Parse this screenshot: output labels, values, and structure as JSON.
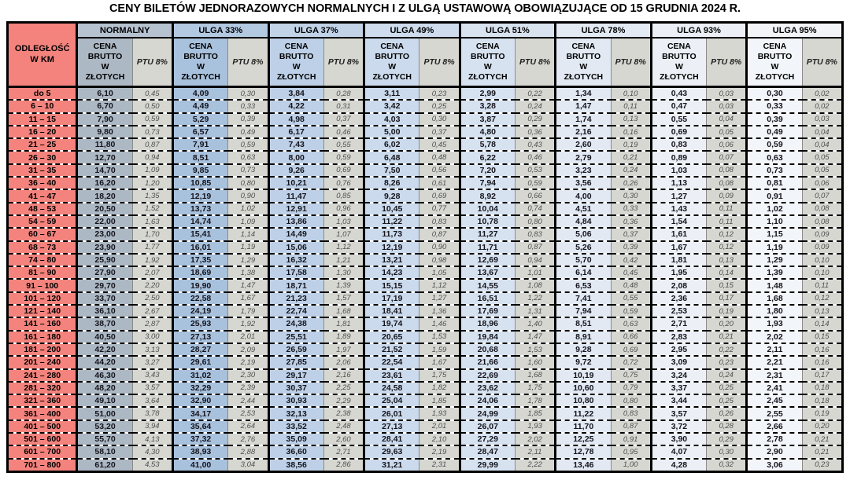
{
  "title": "CENY BILETÓW JEDNORAZOWYCH NORMALNYCH I Z ULGĄ USTAWOWĄ OBOWIĄZUJĄCE OD 15 GRUDNIA 2024 R.",
  "colors": {
    "distance": "#F4837D",
    "ptu_cell": "#D7D7D2",
    "border": "#000000"
  },
  "table": {
    "distance_header": "ODLEGŁOŚĆ\nW KM",
    "cena_header": "CENA\nBRUTTO\nW\nZŁOTYCH",
    "ptu_header": "PTU 8%",
    "groups": [
      {
        "label": "NORMALNY",
        "header_color": "#B6C2D0",
        "cena_color": "#ACB8C4"
      },
      {
        "label": "ULGA 33%",
        "header_color": "#B3C9E2",
        "cena_color": "#A8C1DD"
      },
      {
        "label": "ULGA 37%",
        "header_color": "#C2D3E8",
        "cena_color": "#BDD0E7"
      },
      {
        "label": "ULGA 49%",
        "header_color": "#CEDCEE",
        "cena_color": "#CBDAEC"
      },
      {
        "label": "ULGA 51%",
        "header_color": "#D9E3F0",
        "cena_color": "#D7E2F0"
      },
      {
        "label": "ULGA 78%",
        "header_color": "#E3EAF4",
        "cena_color": "#E2E9F3"
      },
      {
        "label": "ULGA 93%",
        "header_color": "#ECF0F6",
        "cena_color": "#ECF0F6"
      },
      {
        "label": "ULGA 95%",
        "header_color": "#F2F4F8",
        "cena_color": "#F2F5F9"
      }
    ],
    "rows": [
      {
        "km": "do 5",
        "cells": [
          "6,10",
          "0,45",
          "4,09",
          "0,30",
          "3,84",
          "0,28",
          "3,11",
          "0,23",
          "2,99",
          "0,22",
          "1,34",
          "0,10",
          "0,43",
          "0,03",
          "0,30",
          "0,02"
        ]
      },
      {
        "km": "6 – 10",
        "cells": [
          "6,70",
          "0,50",
          "4,49",
          "0,33",
          "4,22",
          "0,31",
          "3,42",
          "0,25",
          "3,28",
          "0,24",
          "1,47",
          "0,11",
          "0,47",
          "0,03",
          "0,33",
          "0,02"
        ]
      },
      {
        "km": "11 – 15",
        "cells": [
          "7,90",
          "0,59",
          "5,29",
          "0,39",
          "4,98",
          "0,37",
          "4,03",
          "0,30",
          "3,87",
          "0,29",
          "1,74",
          "0,13",
          "0,55",
          "0,04",
          "0,39",
          "0,03"
        ]
      },
      {
        "km": "16 – 20",
        "cells": [
          "9,80",
          "0,73",
          "6,57",
          "0,49",
          "6,17",
          "0,46",
          "5,00",
          "0,37",
          "4,80",
          "0,36",
          "2,16",
          "0,16",
          "0,69",
          "0,05",
          "0,49",
          "0,04"
        ]
      },
      {
        "km": "21 – 25",
        "cells": [
          "11,80",
          "0,87",
          "7,91",
          "0,59",
          "7,43",
          "0,55",
          "6,02",
          "0,45",
          "5,78",
          "0,43",
          "2,60",
          "0,19",
          "0,83",
          "0,06",
          "0,59",
          "0,04"
        ]
      },
      {
        "km": "26 – 30",
        "cells": [
          "12,70",
          "0,94",
          "8,51",
          "0,63",
          "8,00",
          "0,59",
          "6,48",
          "0,48",
          "6,22",
          "0,46",
          "2,79",
          "0,21",
          "0,89",
          "0,07",
          "0,63",
          "0,05"
        ]
      },
      {
        "km": "31 – 35",
        "cells": [
          "14,70",
          "1,09",
          "9,85",
          "0,73",
          "9,26",
          "0,69",
          "7,50",
          "0,56",
          "7,20",
          "0,53",
          "3,23",
          "0,24",
          "1,03",
          "0,08",
          "0,73",
          "0,05"
        ]
      },
      {
        "km": "36 – 40",
        "cells": [
          "16,20",
          "1,20",
          "10,85",
          "0,80",
          "10,21",
          "0,76",
          "8,26",
          "0,61",
          "7,94",
          "0,59",
          "3,56",
          "0,26",
          "1,13",
          "0,08",
          "0,81",
          "0,06"
        ]
      },
      {
        "km": "41 – 47",
        "cells": [
          "18,20",
          "1,35",
          "12,19",
          "0,90",
          "11,47",
          "0,85",
          "9,28",
          "0,69",
          "8,92",
          "0,66",
          "4,00",
          "0,30",
          "1,27",
          "0,09",
          "0,91",
          "0,07"
        ]
      },
      {
        "km": "48 – 53",
        "cells": [
          "20,50",
          "1,52",
          "13,73",
          "1,02",
          "12,91",
          "0,96",
          "10,45",
          "0,77",
          "10,04",
          "0,74",
          "4,51",
          "0,33",
          "1,43",
          "0,11",
          "1,02",
          "0,08"
        ]
      },
      {
        "km": "54 – 59",
        "cells": [
          "22,00",
          "1,63",
          "14,74",
          "1,09",
          "13,86",
          "1,03",
          "11,22",
          "0,83",
          "10,78",
          "0,80",
          "4,84",
          "0,36",
          "1,54",
          "0,11",
          "1,10",
          "0,08"
        ]
      },
      {
        "km": "60 – 67",
        "cells": [
          "23,00",
          "1,70",
          "15,41",
          "1,14",
          "14,49",
          "1,07",
          "11,73",
          "0,87",
          "11,27",
          "0,83",
          "5,06",
          "0,37",
          "1,61",
          "0,12",
          "1,15",
          "0,09"
        ]
      },
      {
        "km": "68 – 73",
        "cells": [
          "23,90",
          "1,77",
          "16,01",
          "1,19",
          "15,06",
          "1,12",
          "12,19",
          "0,90",
          "11,71",
          "0,87",
          "5,26",
          "0,39",
          "1,67",
          "0,12",
          "1,19",
          "0,09"
        ]
      },
      {
        "km": "74 – 80",
        "cells": [
          "25,90",
          "1,92",
          "17,35",
          "1,29",
          "16,32",
          "1,21",
          "13,21",
          "0,98",
          "12,69",
          "0,94",
          "5,70",
          "0,42",
          "1,81",
          "0,13",
          "1,29",
          "0,10"
        ]
      },
      {
        "km": "81 – 90",
        "cells": [
          "27,90",
          "2,07",
          "18,69",
          "1,38",
          "17,58",
          "1,30",
          "14,23",
          "1,05",
          "13,67",
          "1,01",
          "6,14",
          "0,45",
          "1,95",
          "0,14",
          "1,39",
          "0,10"
        ]
      },
      {
        "km": "91 – 100",
        "cells": [
          "29,70",
          "2,20",
          "19,90",
          "1,47",
          "18,71",
          "1,39",
          "15,15",
          "1,12",
          "14,55",
          "1,08",
          "6,53",
          "0,48",
          "2,08",
          "0,15",
          "1,48",
          "0,11"
        ]
      },
      {
        "km": "101 – 120",
        "cells": [
          "33,70",
          "2,50",
          "22,58",
          "1,67",
          "21,23",
          "1,57",
          "17,19",
          "1,27",
          "16,51",
          "1,22",
          "7,41",
          "0,55",
          "2,36",
          "0,17",
          "1,68",
          "0,12"
        ]
      },
      {
        "km": "121 – 140",
        "cells": [
          "36,10",
          "2,67",
          "24,19",
          "1,79",
          "22,74",
          "1,68",
          "18,41",
          "1,36",
          "17,69",
          "1,31",
          "7,94",
          "0,59",
          "2,53",
          "0,19",
          "1,80",
          "0,13"
        ]
      },
      {
        "km": "141 – 160",
        "cells": [
          "38,70",
          "2,87",
          "25,93",
          "1,92",
          "24,38",
          "1,81",
          "19,74",
          "1,46",
          "18,96",
          "1,40",
          "8,51",
          "0,63",
          "2,71",
          "0,20",
          "1,93",
          "0,14"
        ]
      },
      {
        "km": "161 – 180",
        "cells": [
          "40,50",
          "3,00",
          "27,13",
          "2,01",
          "25,51",
          "1,89",
          "20,65",
          "1,53",
          "19,84",
          "1,47",
          "8,91",
          "0,66",
          "2,83",
          "0,21",
          "2,02",
          "0,15"
        ]
      },
      {
        "km": "181 – 200",
        "cells": [
          "42,20",
          "3,13",
          "28,27",
          "2,09",
          "26,59",
          "1,97",
          "21,52",
          "1,59",
          "20,68",
          "1,53",
          "9,28",
          "0,69",
          "2,95",
          "0,22",
          "2,11",
          "0,16"
        ]
      },
      {
        "km": "201 – 240",
        "cells": [
          "44,20",
          "3,27",
          "29,61",
          "2,19",
          "27,85",
          "2,06",
          "22,54",
          "1,67",
          "21,66",
          "1,60",
          "9,72",
          "0,72",
          "3,09",
          "0,23",
          "2,21",
          "0,16"
        ]
      },
      {
        "km": "241 – 280",
        "cells": [
          "46,30",
          "3,43",
          "31,02",
          "2,30",
          "29,17",
          "2,16",
          "23,61",
          "1,75",
          "22,69",
          "1,68",
          "10,19",
          "0,75",
          "3,24",
          "0,24",
          "2,31",
          "0,17"
        ]
      },
      {
        "km": "281 – 320",
        "cells": [
          "48,20",
          "3,57",
          "32,29",
          "2,39",
          "30,37",
          "2,25",
          "24,58",
          "1,82",
          "23,62",
          "1,75",
          "10,60",
          "0,79",
          "3,37",
          "0,25",
          "2,41",
          "0,18"
        ]
      },
      {
        "km": "321 – 360",
        "cells": [
          "49,10",
          "3,64",
          "32,90",
          "2,44",
          "30,93",
          "2,29",
          "25,04",
          "1,85",
          "24,06",
          "1,78",
          "10,80",
          "0,80",
          "3,44",
          "0,25",
          "2,45",
          "0,18"
        ]
      },
      {
        "km": "361 – 400",
        "cells": [
          "51,00",
          "3,78",
          "34,17",
          "2,53",
          "32,13",
          "2,38",
          "26,01",
          "1,93",
          "24,99",
          "1,85",
          "11,22",
          "0,83",
          "3,57",
          "0,26",
          "2,55",
          "0,19"
        ]
      },
      {
        "km": "401 – 500",
        "cells": [
          "53,20",
          "3,94",
          "35,64",
          "2,64",
          "33,52",
          "2,48",
          "27,13",
          "2,01",
          "26,07",
          "1,93",
          "11,70",
          "0,87",
          "3,72",
          "0,28",
          "2,66",
          "0,20"
        ]
      },
      {
        "km": "501 – 600",
        "cells": [
          "55,70",
          "4,13",
          "37,32",
          "2,76",
          "35,09",
          "2,60",
          "28,41",
          "2,10",
          "27,29",
          "2,02",
          "12,25",
          "0,91",
          "3,90",
          "0,29",
          "2,78",
          "0,21"
        ]
      },
      {
        "km": "601 – 700",
        "cells": [
          "58,10",
          "4,30",
          "38,93",
          "2,88",
          "36,60",
          "2,71",
          "29,63",
          "2,19",
          "28,47",
          "2,11",
          "12,78",
          "0,95",
          "4,07",
          "0,30",
          "2,90",
          "0,21"
        ]
      },
      {
        "km": "701 – 800",
        "cells": [
          "61,20",
          "4,53",
          "41,00",
          "3,04",
          "38,56",
          "2,86",
          "31,21",
          "2,31",
          "29,99",
          "2,22",
          "13,46",
          "1,00",
          "4,28",
          "0,32",
          "3,06",
          "0,23"
        ]
      }
    ]
  }
}
